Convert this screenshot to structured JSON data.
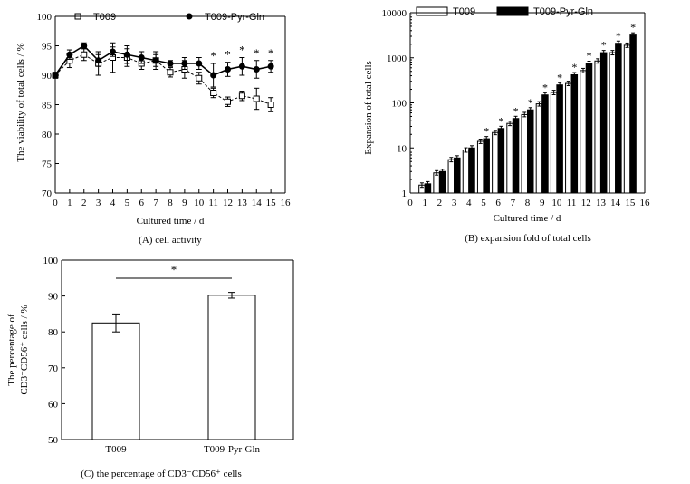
{
  "chart_data": [
    {
      "type": "line",
      "caption": "(A) cell activity",
      "xlabel": "Cultured time / d",
      "ylabel": "The viability of total cells / %",
      "xlim": [
        0,
        16
      ],
      "ylim": [
        70,
        100
      ],
      "xticks": [
        0,
        1,
        2,
        3,
        4,
        5,
        6,
        7,
        8,
        9,
        10,
        11,
        12,
        13,
        14,
        15,
        16
      ],
      "yticks": [
        70,
        75,
        80,
        85,
        90,
        95,
        100
      ],
      "legend_position": "top",
      "series": [
        {
          "name": "T009",
          "marker": "open-square",
          "line": "dashed",
          "x": [
            0,
            1,
            2,
            3,
            4,
            5,
            6,
            7,
            8,
            9,
            10,
            11,
            12,
            13,
            14,
            15
          ],
          "y": [
            90.0,
            92.5,
            93.5,
            92.0,
            93.0,
            93.0,
            92.0,
            92.5,
            90.5,
            91.0,
            89.5,
            87.0,
            85.5,
            86.5,
            86.0,
            85.0
          ],
          "err": [
            0.5,
            1.2,
            1.0,
            2.0,
            2.5,
            1.5,
            1.0,
            1.5,
            0.8,
            1.5,
            1.0,
            0.8,
            0.8,
            0.8,
            1.8,
            1.2
          ]
        },
        {
          "name": "T009-Pyr-Gln",
          "marker": "filled-circle",
          "line": "solid",
          "x": [
            0,
            1,
            2,
            3,
            4,
            5,
            6,
            7,
            8,
            9,
            10,
            11,
            12,
            13,
            14,
            15
          ],
          "y": [
            90.0,
            93.5,
            95.0,
            92.5,
            94.0,
            93.5,
            93.0,
            92.5,
            92.0,
            92.0,
            92.0,
            90.0,
            91.0,
            91.5,
            91.0,
            91.5
          ],
          "err": [
            0.5,
            0.8,
            0.5,
            1.0,
            0.8,
            1.5,
            1.0,
            1.0,
            0.5,
            1.0,
            1.0,
            2.0,
            1.2,
            1.5,
            1.5,
            1.0
          ]
        }
      ],
      "significance": {
        "symbol": "*",
        "x": [
          11,
          12,
          13,
          14,
          15
        ]
      }
    },
    {
      "type": "bar",
      "caption": "(B) expansion fold of total cells",
      "xlabel": "Cultured time / d",
      "ylabel": "Expansion of total cells",
      "xlim": [
        0,
        16
      ],
      "ylim": [
        1,
        10000
      ],
      "yscale": "log",
      "xticks": [
        0,
        1,
        2,
        3,
        4,
        5,
        6,
        7,
        8,
        9,
        10,
        11,
        12,
        13,
        14,
        15,
        16
      ],
      "yticks": [
        1,
        10,
        100,
        1000,
        10000
      ],
      "legend_position": "top",
      "categories": [
        1,
        2,
        3,
        4,
        5,
        6,
        7,
        8,
        9,
        10,
        11,
        12,
        13,
        14,
        15
      ],
      "series": [
        {
          "name": "T009",
          "fill": "white",
          "values": [
            1.5,
            2.8,
            5.5,
            9,
            14,
            22,
            35,
            55,
            95,
            170,
            270,
            520,
            850,
            1300,
            1900
          ]
        },
        {
          "name": "T009-Pyr-Gln",
          "fill": "black",
          "values": [
            1.6,
            3,
            6,
            10,
            16,
            27,
            45,
            70,
            150,
            250,
            420,
            750,
            1300,
            2100,
            3200
          ]
        }
      ],
      "significance": {
        "symbol": "*",
        "x": [
          5,
          6,
          7,
          8,
          9,
          10,
          11,
          12,
          13,
          14,
          15
        ]
      }
    },
    {
      "type": "bar",
      "caption": "(C) the percentage of CD3⁻CD56⁺ cells",
      "ylabel_line1": "The percentage of",
      "ylabel_line2": "CD3⁻CD56⁺ cells / %",
      "ylim": [
        50,
        100
      ],
      "yticks": [
        50,
        60,
        70,
        80,
        90,
        100
      ],
      "categories": [
        "T009",
        "T009-Pyr-Gln"
      ],
      "values": [
        82.5,
        90.2
      ],
      "err": [
        2.5,
        0.8
      ],
      "significance": "*"
    }
  ],
  "colors": {
    "ink": "#000000",
    "paper": "#ffffff"
  }
}
